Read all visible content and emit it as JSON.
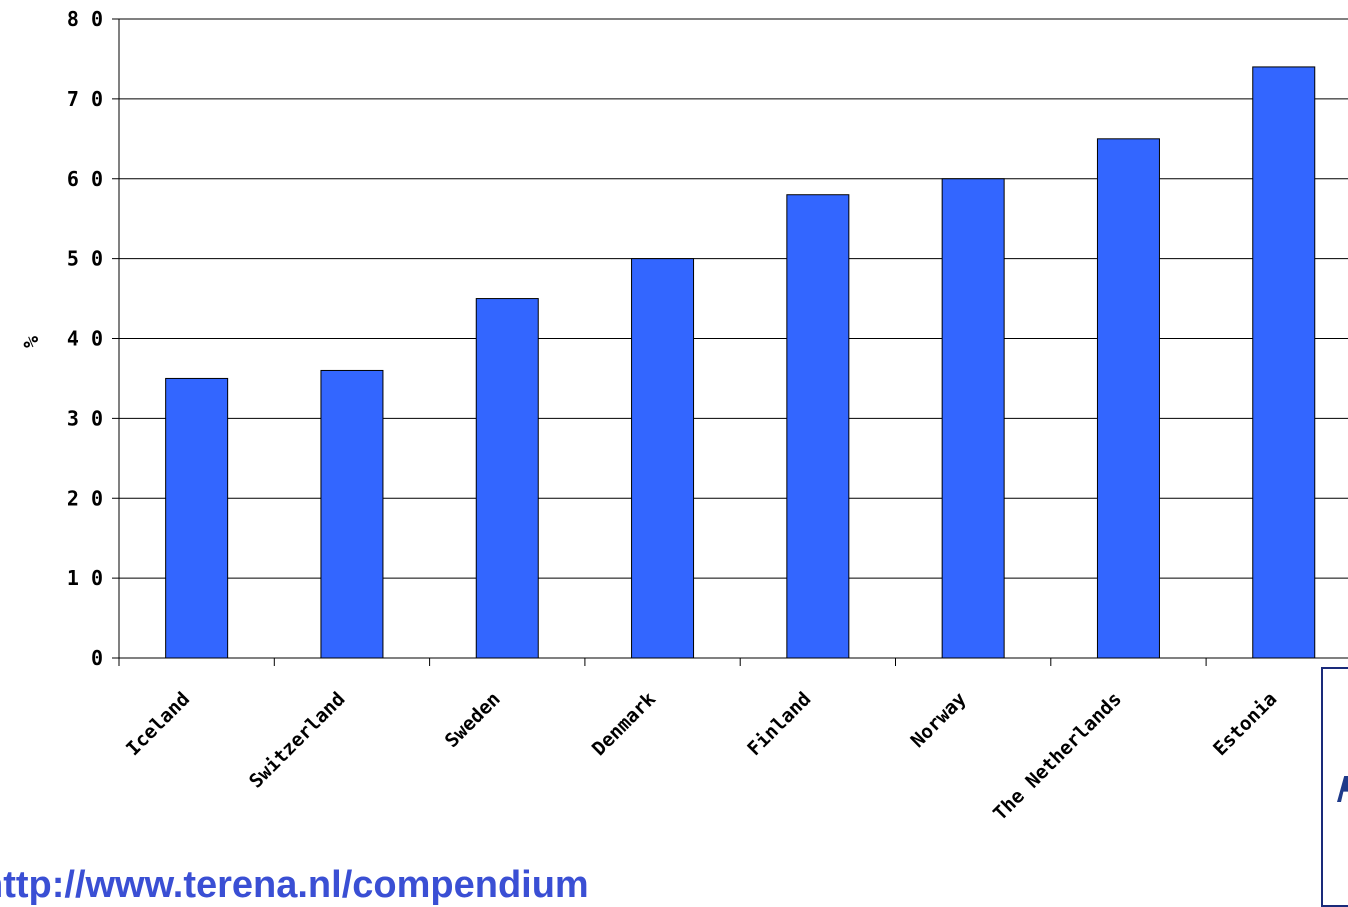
{
  "chart_data": {
    "type": "bar",
    "categories": [
      "Iceland",
      "Switzerland",
      "Sweden",
      "Denmark",
      "Finland",
      "Norway",
      "The Netherlands",
      "Estonia"
    ],
    "series": [
      {
        "values": [
          35,
          36,
          45,
          50,
          58,
          60,
          65,
          74
        ],
        "color": "#3366ff"
      }
    ],
    "ylabel": "%",
    "ylim": [
      0,
      80
    ],
    "yticks": [
      0,
      10,
      20,
      30,
      40,
      50,
      60,
      70,
      80
    ],
    "grid": true,
    "legend": "none"
  },
  "source": {
    "link_text": "http://www.terena.nl/compendium"
  },
  "colors": {
    "bar": "#3366ff",
    "link": "#3a4fd4",
    "logo": "#1e3a8a"
  }
}
